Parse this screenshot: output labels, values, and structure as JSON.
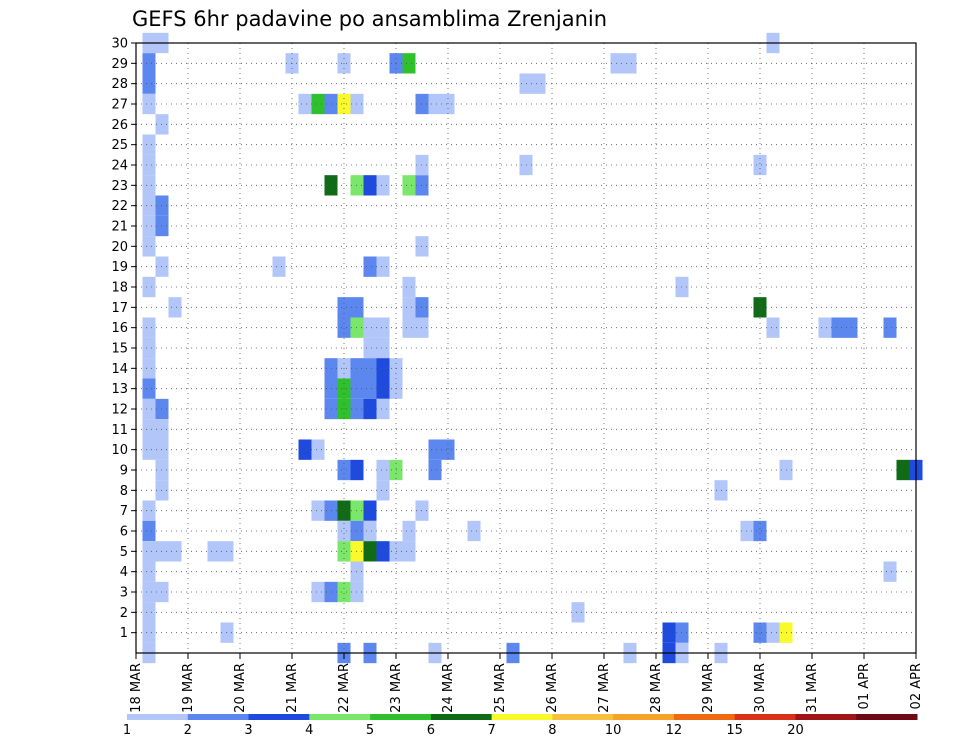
{
  "chart_data": {
    "type": "heatmap",
    "title": "GEFS 6hr padavine po ansamblima Zrenjanin",
    "xlabel": "",
    "ylabel": "",
    "x_tick_labels": [
      "18 MAR",
      "19 MAR",
      "20 MAR",
      "21 MAR",
      "22 MAR",
      "23 MAR",
      "24 MAR",
      "25 MAR",
      "26 MAR",
      "27 MAR",
      "28 MAR",
      "29 MAR",
      "30 MAR",
      "31 MAR",
      "01 APR",
      "02 APR"
    ],
    "y_ticks": [
      1,
      2,
      3,
      4,
      5,
      6,
      7,
      8,
      9,
      10,
      11,
      12,
      13,
      14,
      15,
      16,
      17,
      18,
      19,
      20,
      21,
      22,
      23,
      24,
      25,
      26,
      27,
      28,
      29,
      30
    ],
    "xlim": [
      0,
      60
    ],
    "ylim": [
      0,
      30
    ],
    "grid": true,
    "x_unit_note": "x = 6-hour step index from 18 MAR 00z",
    "legend_levels": [
      "1",
      "2",
      "3",
      "4",
      "5",
      "6",
      "7",
      "8",
      "10",
      "12",
      "15",
      "20"
    ],
    "legend_colors": [
      "#b3c6fa",
      "#5b87ee",
      "#1f4ade",
      "#7ae76b",
      "#2fc12b",
      "#0f6b16",
      "#fafa2a",
      "#f9c040",
      "#f7a228",
      "#f06a14",
      "#d93218",
      "#a01618",
      "#6e0a14"
    ],
    "cells": [
      [
        1,
        30,
        0
      ],
      [
        2,
        30,
        0
      ],
      [
        1,
        29,
        1
      ],
      [
        1,
        28,
        1
      ],
      [
        1,
        27,
        0
      ],
      [
        2,
        26,
        0
      ],
      [
        1,
        25,
        0
      ],
      [
        1,
        24,
        0
      ],
      [
        1,
        23,
        0
      ],
      [
        1,
        22,
        0
      ],
      [
        2,
        22,
        1
      ],
      [
        1,
        21,
        0
      ],
      [
        2,
        21,
        1
      ],
      [
        1,
        20,
        0
      ],
      [
        2,
        19,
        0
      ],
      [
        1,
        18,
        0
      ],
      [
        3,
        17,
        0
      ],
      [
        1,
        16,
        0
      ],
      [
        1,
        15,
        0
      ],
      [
        1,
        14,
        0
      ],
      [
        1,
        13,
        1
      ],
      [
        1,
        12,
        0
      ],
      [
        2,
        12,
        1
      ],
      [
        1,
        11,
        0
      ],
      [
        2,
        11,
        0
      ],
      [
        1,
        10,
        0
      ],
      [
        2,
        10,
        0
      ],
      [
        2,
        9,
        0
      ],
      [
        2,
        8,
        0
      ],
      [
        1,
        7,
        0
      ],
      [
        1,
        6,
        1
      ],
      [
        1,
        5,
        0
      ],
      [
        2,
        5,
        0
      ],
      [
        3,
        5,
        0
      ],
      [
        1,
        4,
        0
      ],
      [
        1,
        3,
        0
      ],
      [
        2,
        3,
        0
      ],
      [
        1,
        2,
        0
      ],
      [
        1,
        1,
        0
      ],
      [
        1,
        0,
        0
      ],
      [
        6,
        5,
        0
      ],
      [
        7,
        5,
        0
      ],
      [
        7,
        1,
        0
      ],
      [
        12,
        29,
        0
      ],
      [
        11,
        19,
        0
      ],
      [
        13,
        27,
        0
      ],
      [
        14,
        27,
        4
      ],
      [
        15,
        27,
        1
      ],
      [
        16,
        27,
        6
      ],
      [
        17,
        27,
        0
      ],
      [
        16,
        29,
        0
      ],
      [
        20,
        29,
        1
      ],
      [
        21,
        29,
        4
      ],
      [
        15,
        23,
        5
      ],
      [
        17,
        23,
        3
      ],
      [
        18,
        23,
        2
      ],
      [
        19,
        23,
        0
      ],
      [
        21,
        23,
        3
      ],
      [
        22,
        23,
        1
      ],
      [
        18,
        19,
        1
      ],
      [
        19,
        19,
        0
      ],
      [
        16,
        17,
        1
      ],
      [
        17,
        17,
        1
      ],
      [
        16,
        16,
        1
      ],
      [
        17,
        16,
        3
      ],
      [
        18,
        16,
        0
      ],
      [
        19,
        16,
        0
      ],
      [
        18,
        15,
        0
      ],
      [
        19,
        15,
        0
      ],
      [
        15,
        14,
        1
      ],
      [
        16,
        14,
        0
      ],
      [
        17,
        14,
        1
      ],
      [
        18,
        14,
        1
      ],
      [
        19,
        14,
        2
      ],
      [
        20,
        14,
        0
      ],
      [
        15,
        13,
        1
      ],
      [
        16,
        13,
        4
      ],
      [
        17,
        13,
        1
      ],
      [
        18,
        13,
        1
      ],
      [
        19,
        13,
        2
      ],
      [
        20,
        13,
        0
      ],
      [
        15,
        12,
        1
      ],
      [
        16,
        12,
        4
      ],
      [
        17,
        12,
        1
      ],
      [
        18,
        12,
        2
      ],
      [
        19,
        12,
        0
      ],
      [
        13,
        10,
        2
      ],
      [
        14,
        10,
        0
      ],
      [
        16,
        9,
        1
      ],
      [
        17,
        9,
        2
      ],
      [
        19,
        9,
        0
      ],
      [
        20,
        9,
        3
      ],
      [
        19,
        8,
        0
      ],
      [
        14,
        7,
        0
      ],
      [
        15,
        7,
        1
      ],
      [
        16,
        7,
        5
      ],
      [
        17,
        7,
        3
      ],
      [
        18,
        7,
        2
      ],
      [
        16,
        6,
        0
      ],
      [
        17,
        6,
        1
      ],
      [
        18,
        6,
        0
      ],
      [
        16,
        5,
        3
      ],
      [
        17,
        5,
        6
      ],
      [
        18,
        5,
        5
      ],
      [
        19,
        5,
        2
      ],
      [
        20,
        5,
        0
      ],
      [
        21,
        5,
        0
      ],
      [
        17,
        4,
        0
      ],
      [
        14,
        3,
        0
      ],
      [
        15,
        3,
        1
      ],
      [
        16,
        3,
        3
      ],
      [
        17,
        3,
        0
      ],
      [
        16,
        0,
        1
      ],
      [
        18,
        0,
        1
      ],
      [
        22,
        27,
        1
      ],
      [
        23,
        27,
        0
      ],
      [
        24,
        27,
        0
      ],
      [
        22,
        24,
        0
      ],
      [
        22,
        20,
        0
      ],
      [
        21,
        18,
        0
      ],
      [
        21,
        17,
        0
      ],
      [
        21,
        16,
        0
      ],
      [
        22,
        16,
        0
      ],
      [
        22,
        17,
        1
      ],
      [
        23,
        10,
        1
      ],
      [
        24,
        10,
        1
      ],
      [
        23,
        9,
        1
      ],
      [
        22,
        7,
        0
      ],
      [
        21,
        6,
        0
      ],
      [
        26,
        6,
        0
      ],
      [
        23,
        0,
        0
      ],
      [
        30,
        28,
        0
      ],
      [
        31,
        28,
        0
      ],
      [
        30,
        24,
        0
      ],
      [
        29,
        0,
        1
      ],
      [
        34,
        2,
        0
      ],
      [
        37,
        29,
        0
      ],
      [
        38,
        29,
        0
      ],
      [
        38,
        0,
        0
      ],
      [
        42,
        18,
        0
      ],
      [
        41,
        1,
        2
      ],
      [
        42,
        1,
        1
      ],
      [
        41,
        0,
        2
      ],
      [
        42,
        0,
        0
      ],
      [
        45,
        8,
        0
      ],
      [
        45,
        0,
        0
      ],
      [
        49,
        30,
        0
      ],
      [
        48,
        24,
        0
      ],
      [
        48,
        17,
        5
      ],
      [
        49,
        16,
        0
      ],
      [
        50,
        9,
        0
      ],
      [
        47,
        6,
        0
      ],
      [
        48,
        6,
        1
      ],
      [
        48,
        1,
        1
      ],
      [
        49,
        1,
        0
      ],
      [
        50,
        1,
        6
      ],
      [
        53,
        16,
        0
      ],
      [
        54,
        16,
        1
      ],
      [
        55,
        16,
        1
      ],
      [
        58,
        16,
        1
      ],
      [
        59,
        9,
        5
      ],
      [
        60,
        9,
        2
      ],
      [
        58,
        4,
        0
      ]
    ]
  }
}
